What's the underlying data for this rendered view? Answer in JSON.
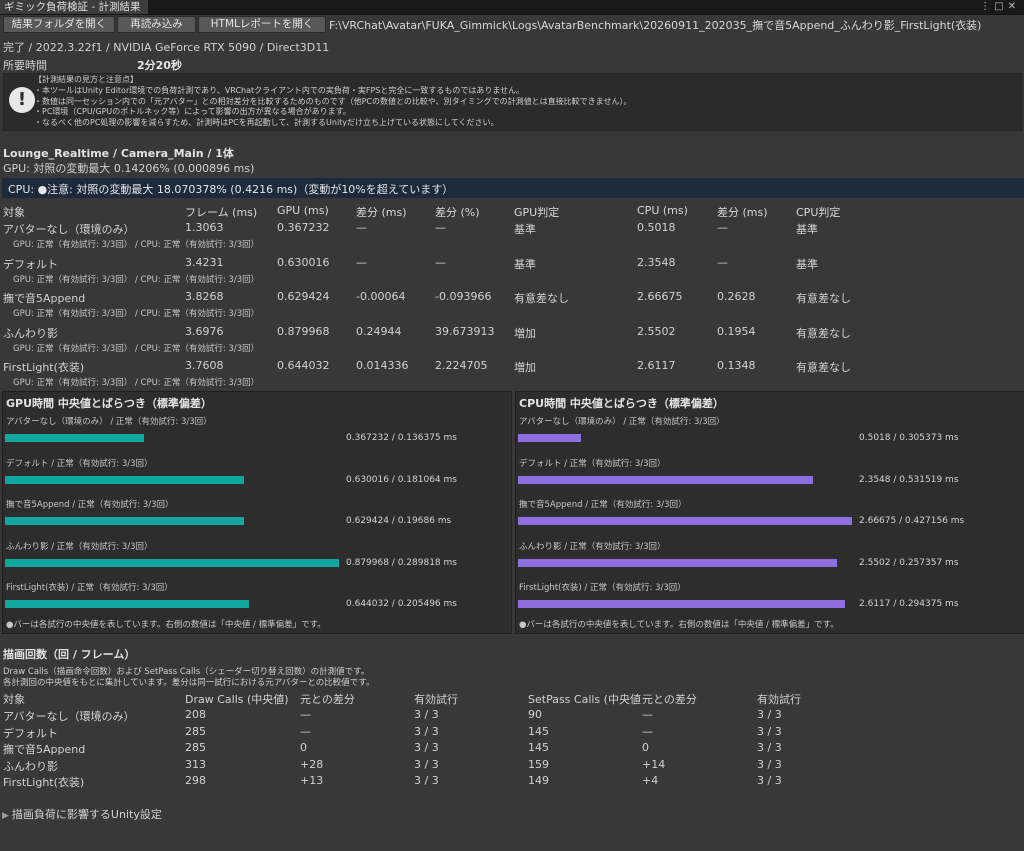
{
  "window": {
    "tab_title": "ギミック負荷検証 - 計測結果"
  },
  "toolbar": {
    "open_folder": "結果フォルダを開く",
    "reload": "再読み込み",
    "open_html": "HTMLレポートを開く",
    "path": "F:\\VRChat\\Avatar\\FUKA_Gimmick\\Logs\\AvatarBenchmark\\20260911_202035_撫で音5Append_ふんわり影_FirstLight(衣装)"
  },
  "status": "完了 / 2022.3.22f1 / NVIDIA GeForce RTX 5090 / Direct3D11",
  "elapsed": {
    "label": "所要時間",
    "value": "2分20秒"
  },
  "help": {
    "lines": [
      "【計測結果の見方と注意点】",
      "・本ツールはUnity Editor環境での負荷計測であり、VRChatクライアント内での実負荷・実FPSと完全に一致するものではありません。",
      "・数値は同一セッション内での「元アバター」との相対差分を比較するためのものです（他PCの数値との比較や、別タイミングでの計測値とは直接比較できません）。",
      "・PC環境（CPU/GPUのボトルネック等）によって影響の出方が異なる場合があります。",
      "・なるべく他のPC処理の影響を減らすため、計測時はPCを再起動して、計測するUnityだけ立ち上げている状態にしてください。"
    ]
  },
  "section": {
    "title": "Lounge_Realtime / Camera_Main / 1体",
    "gpu_summary": "GPU: 対照の変動最大 0.14206% (0.000896 ms)",
    "cpu_warning": "CPU: ●注意: 対照の変動最大 18.070378% (0.4216 ms)（変動が10%を超えています）"
  },
  "results_table": {
    "headers": [
      "対象",
      "フレーム (ms)",
      "GPU (ms)",
      "差分 (ms)",
      "差分 (%)",
      "GPU判定",
      "CPU (ms)",
      "差分 (ms)",
      "CPU判定"
    ],
    "rows": [
      {
        "cells": [
          "アバターなし（環境のみ）",
          "1.3063",
          "0.367232",
          "—",
          "—",
          "基準",
          "0.5018",
          "—",
          "基準"
        ],
        "sub": "GPU: 正常（有効試行: 3/3回） / CPU: 正常（有効試行: 3/3回）"
      },
      {
        "cells": [
          "デフォルト",
          "3.4231",
          "0.630016",
          "—",
          "—",
          "基準",
          "2.3548",
          "—",
          "基準"
        ],
        "sub": "GPU: 正常（有効試行: 3/3回） / CPU: 正常（有効試行: 3/3回）"
      },
      {
        "cells": [
          "撫で音5Append",
          "3.8268",
          "0.629424",
          "-0.00064",
          "-0.093966",
          "有意差なし",
          "2.66675",
          "0.2628",
          "有意差なし"
        ],
        "sub": "GPU: 正常（有効試行: 3/3回） / CPU: 正常（有効試行: 3/3回）"
      },
      {
        "cells": [
          "ふんわり影",
          "3.6976",
          "0.879968",
          "0.24944",
          "39.673913",
          "増加",
          "2.5502",
          "0.1954",
          "有意差なし"
        ],
        "sub": "GPU: 正常（有効試行: 3/3回） / CPU: 正常（有効試行: 3/3回）"
      },
      {
        "cells": [
          "FirstLight(衣装)",
          "3.7608",
          "0.644032",
          "0.014336",
          "2.224705",
          "増加",
          "2.6117",
          "0.1348",
          "有意差なし"
        ],
        "sub": "GPU: 正常（有効試行: 3/3回） / CPU: 正常（有効試行: 3/3回）"
      }
    ]
  },
  "gpu_panel": {
    "title": "GPU時間 中央値とばらつき（標準偏差）",
    "color": "#12a6a0",
    "note": "●バーは各試行の中央値を表しています。右側の数値は「中央値 / 標準偏差」です。",
    "items": [
      {
        "label": "アバターなし（環境のみ） / 正常（有効試行: 3/3回）",
        "fraction": 0.417,
        "value": "0.367232 / 0.136375 ms"
      },
      {
        "label": "デフォルト / 正常（有効試行: 3/3回）",
        "fraction": 0.716,
        "value": "0.630016 / 0.181064 ms"
      },
      {
        "label": "撫で音5Append / 正常（有効試行: 3/3回）",
        "fraction": 0.716,
        "value": "0.629424 / 0.19686 ms"
      },
      {
        "label": "ふんわり影 / 正常（有効試行: 3/3回）",
        "fraction": 1.0,
        "value": "0.879968 / 0.289818 ms"
      },
      {
        "label": "FirstLight(衣装) / 正常（有効試行: 3/3回）",
        "fraction": 0.732,
        "value": "0.644032 / 0.205496 ms"
      }
    ]
  },
  "cpu_panel": {
    "title": "CPU時間 中央値とばらつき（標準偏差）",
    "color": "#8f6fe0",
    "note": "●バーは各試行の中央値を表しています。右側の数値は「中央値 / 標準偏差」です。",
    "items": [
      {
        "label": "アバターなし（環境のみ） / 正常（有効試行: 3/3回）",
        "fraction": 0.188,
        "value": "0.5018 / 0.305373 ms"
      },
      {
        "label": "デフォルト / 正常（有効試行: 3/3回）",
        "fraction": 0.883,
        "value": "2.3548 / 0.531519 ms"
      },
      {
        "label": "撫で音5Append / 正常（有効試行: 3/3回）",
        "fraction": 1.0,
        "value": "2.66675 / 0.427156 ms"
      },
      {
        "label": "ふんわり影 / 正常（有効試行: 3/3回）",
        "fraction": 0.956,
        "value": "2.5502 / 0.257357 ms"
      },
      {
        "label": "FirstLight(衣装) / 正常（有効試行: 3/3回）",
        "fraction": 0.979,
        "value": "2.6117 / 0.294375 ms"
      }
    ]
  },
  "draw_calls": {
    "title": "描画回数（回 / フレーム）",
    "note1": "Draw Calls（描画命令回数）および SetPass Calls（シェーダー切り替え回数）の計測値です。",
    "note2": "各計測回の中央値をもとに集計しています。差分は同一試行における元アバターとの比較値です。",
    "headers": [
      "対象",
      "Draw Calls (中央値)",
      "元との差分",
      "有効試行",
      "SetPass Calls (中央値",
      "元との差分",
      "有効試行"
    ],
    "rows": [
      [
        "アバターなし（環境のみ）",
        "208",
        "—",
        "3 / 3",
        "90",
        "—",
        "3 / 3"
      ],
      [
        "デフォルト",
        "285",
        "—",
        "3 / 3",
        "145",
        "—",
        "3 / 3"
      ],
      [
        "撫で音5Append",
        "285",
        "0",
        "3 / 3",
        "145",
        "0",
        "3 / 3"
      ],
      [
        "ふんわり影",
        "313",
        "+28",
        "3 / 3",
        "159",
        "+14",
        "3 / 3"
      ],
      [
        "FirstLight(衣装)",
        "298",
        "+13",
        "3 / 3",
        "149",
        "+4",
        "3 / 3"
      ]
    ]
  },
  "foldout": {
    "label": "描画負荷に影響するUnity設定"
  }
}
